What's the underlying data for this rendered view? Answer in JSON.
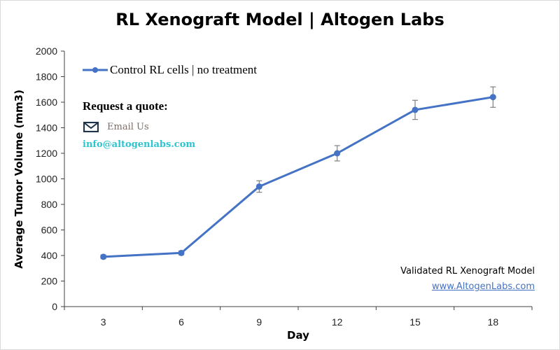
{
  "chart_data": {
    "type": "line",
    "title": "RL Xenograft Model | Altogen Labs",
    "xlabel": "Day",
    "ylabel": "Average Tumor Volume (mm3)",
    "categories": [
      "3",
      "6",
      "9",
      "12",
      "15",
      "18"
    ],
    "ylim": [
      0,
      2000
    ],
    "yticks": [
      "0",
      "200",
      "400",
      "600",
      "800",
      "1000",
      "1200",
      "1400",
      "1600",
      "1800",
      "2000"
    ],
    "ytick_values": [
      0,
      200,
      400,
      600,
      800,
      1000,
      1200,
      1400,
      1600,
      1800,
      2000
    ],
    "grid": false,
    "legend_position": "top-left",
    "series": [
      {
        "name": "Control RL cells | no treatment",
        "color": "#4472c4",
        "values": [
          390,
          420,
          940,
          1200,
          1540,
          1640
        ],
        "errors": [
          15,
          15,
          45,
          60,
          75,
          80
        ]
      }
    ],
    "error_bar_color": "#808080",
    "annotations": {
      "request_quote": "Request a quote:",
      "email_label": "Email Us",
      "email_address": "info@altogenlabs.com",
      "validated": "Validated RL Xenograft Model",
      "website": "www.AltogenLabs.com"
    },
    "colors": {
      "email_address": "#2cc4d0",
      "website": "#4472c4",
      "email_icon": "#1f3349"
    },
    "icons": {
      "email": "envelope-icon"
    }
  }
}
